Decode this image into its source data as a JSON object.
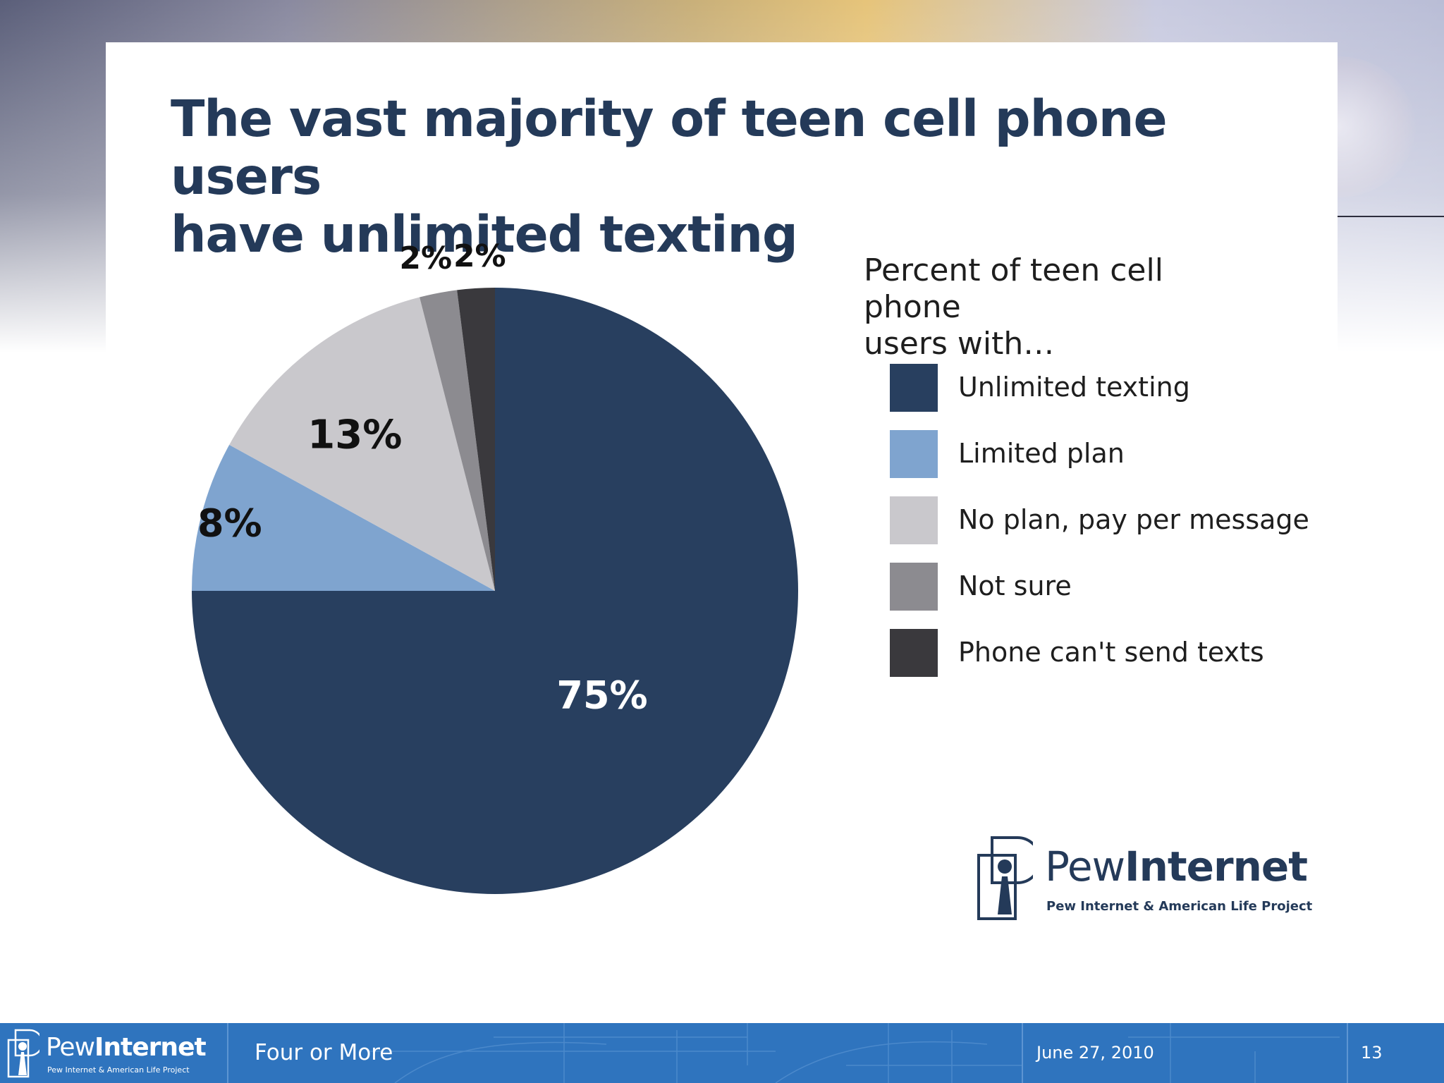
{
  "slide": {
    "title_line1": "The vast majority of teen cell phone users",
    "title_line2": "have unlimited texting"
  },
  "legend": {
    "title_line1": "Percent of teen cell phone",
    "title_line2": "users with…"
  },
  "chart_data": {
    "type": "pie",
    "title": "The vast majority of teen cell phone users have unlimited texting",
    "legend_title": "Percent of teen cell phone users with…",
    "legend_position": "right",
    "start_angle_deg": 0,
    "direction": "clockwise",
    "slices": [
      {
        "label": "Unlimited texting",
        "value": 75,
        "display": "75%",
        "color": "#283f5f",
        "label_color": "#ffffff"
      },
      {
        "label": "Limited plan",
        "value": 8,
        "display": "8%",
        "color": "#7fa4cf",
        "label_color": "#111111"
      },
      {
        "label": "No plan, pay per message",
        "value": 13,
        "display": "13%",
        "color": "#c9c8cc",
        "label_color": "#111111"
      },
      {
        "label": "Not sure",
        "value": 2,
        "display": "2%",
        "color": "#8c8b90",
        "label_color": "#111111"
      },
      {
        "label": "Phone can't send texts",
        "value": 2,
        "display": "2%",
        "color": "#3a393d",
        "label_color": "#111111"
      }
    ]
  },
  "logo": {
    "name_regular": "Pew",
    "name_bold": "Internet",
    "tagline": "Pew Internet & American Life Project"
  },
  "footer": {
    "logo_name_regular": "Pew",
    "logo_name_bold": "Internet",
    "logo_tagline": "Pew Internet & American Life Project",
    "presentation_title": "Four or More",
    "date": "June 27, 2010",
    "page_number": "13",
    "color": "#2f74be"
  }
}
